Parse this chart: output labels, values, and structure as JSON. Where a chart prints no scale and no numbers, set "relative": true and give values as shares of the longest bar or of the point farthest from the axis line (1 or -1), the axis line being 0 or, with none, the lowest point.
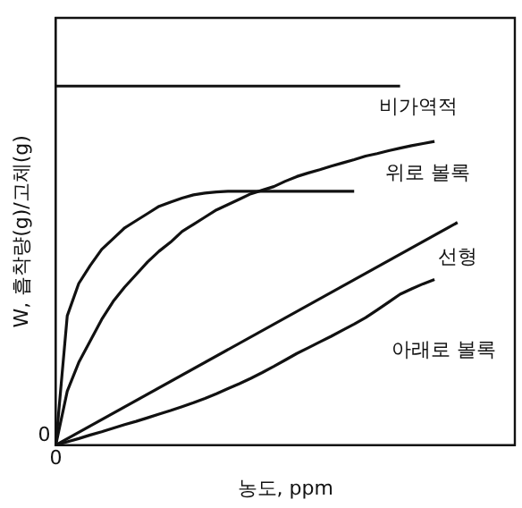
{
  "chart_data": {
    "type": "line",
    "relative": true,
    "xlabel": "농도, ppm",
    "ylabel": "W, 흡착량(g)/고체(g)",
    "annotations": [
      "0",
      "0"
    ],
    "grid": false,
    "legend": false,
    "marker": "none",
    "line_style": "solid",
    "categories": [
      null,
      null,
      null,
      null,
      null,
      null,
      null,
      null,
      null,
      null,
      null,
      null,
      null,
      null,
      null,
      null,
      null,
      null,
      null,
      null,
      null,
      null,
      null,
      null,
      null,
      null,
      null,
      null,
      null,
      null,
      null,
      null,
      null,
      null,
      null,
      null,
      null,
      null,
      null,
      null,
      null
    ],
    "series": [
      {
        "name": "비가역적",
        "color": "#111111",
        "values": [
          1,
          null,
          null,
          null,
          null,
          null,
          null,
          null,
          null,
          null,
          null,
          null,
          null,
          null,
          null,
          null,
          null,
          null,
          null,
          null,
          null,
          null,
          null,
          null,
          null,
          null,
          null,
          null,
          null,
          null,
          1,
          null,
          null,
          null,
          null,
          null,
          null,
          null,
          null,
          null,
          null
        ]
      },
      {
        "color": "#111111",
        "values": [
          0,
          0.36,
          0.45,
          0.5,
          0.545,
          0.575,
          0.605,
          0.625,
          0.645,
          0.665,
          0.677,
          0.688,
          0.697,
          0.702,
          0.705,
          0.707,
          0.707,
          0.707,
          0.707,
          0.707,
          0.707,
          0.707,
          0.707,
          0.707,
          0.707,
          0.707,
          0.707,
          null,
          null,
          null,
          null,
          null,
          null,
          null,
          null,
          null,
          null,
          null,
          null,
          null,
          null
        ]
      },
      {
        "name": "위로 볼록",
        "color": "#111111",
        "values": [
          0,
          0.15,
          0.23,
          0.29,
          0.35,
          0.4,
          0.44,
          0.475,
          0.51,
          0.54,
          0.565,
          0.595,
          0.615,
          0.635,
          0.655,
          0.67,
          0.685,
          0.7,
          0.71,
          0.72,
          0.735,
          0.748,
          0.758,
          0.767,
          0.777,
          0.786,
          0.795,
          0.805,
          0.812,
          0.82,
          0.827,
          0.834,
          0.84,
          0.846,
          null,
          null,
          null,
          null,
          null,
          null,
          null
        ]
      },
      {
        "name": "선형",
        "color": "#111111",
        "values": [
          0,
          null,
          null,
          null,
          null,
          null,
          null,
          null,
          null,
          null,
          null,
          null,
          null,
          null,
          null,
          null,
          null,
          null,
          null,
          null,
          null,
          null,
          null,
          null,
          null,
          null,
          null,
          null,
          null,
          null,
          null,
          null,
          null,
          null,
          null,
          0.62,
          null,
          null,
          null,
          null,
          null
        ]
      },
      {
        "name": "아래로 볼록",
        "color": "#111111",
        "values": [
          0,
          0.009,
          0.018,
          0.028,
          0.037,
          0.047,
          0.057,
          0.066,
          0.076,
          0.086,
          0.096,
          0.107,
          0.118,
          0.13,
          0.143,
          0.157,
          0.171,
          0.186,
          0.202,
          0.219,
          0.237,
          0.255,
          0.271,
          0.287,
          0.303,
          0.32,
          0.337,
          0.355,
          0.376,
          0.398,
          0.42,
          0.435,
          0.449,
          0.461,
          null,
          null,
          null,
          null,
          null,
          null,
          null
        ]
      }
    ]
  }
}
